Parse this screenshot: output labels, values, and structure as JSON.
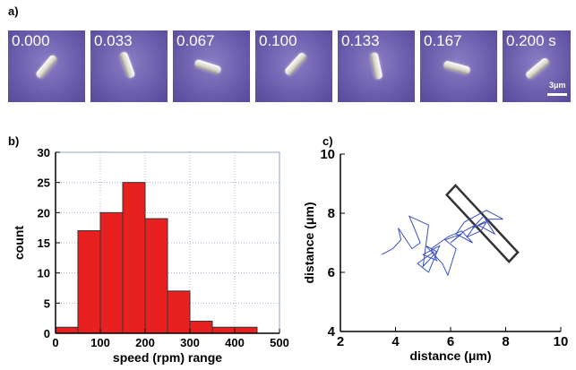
{
  "panels": {
    "a": "a)",
    "b": "b)",
    "c": "c)"
  },
  "frames": {
    "times": [
      "0.000",
      "0.033",
      "0.067",
      "0.100",
      "0.133",
      "0.167",
      "0.200 s"
    ],
    "rod_angles_deg": [
      -50,
      70,
      18,
      -48,
      78,
      15,
      -40
    ],
    "scale_bar_label": "3μm"
  },
  "chart_data": [
    {
      "type": "bar",
      "panel": "b",
      "xlabel": "speed (rpm) range",
      "ylabel": "count",
      "xlim": [
        0,
        500
      ],
      "ylim": [
        0,
        30
      ],
      "xticks": [
        0,
        100,
        200,
        300,
        400,
        500
      ],
      "yticks": [
        0,
        5,
        10,
        15,
        20,
        25,
        30
      ],
      "bins": [
        [
          0,
          50
        ],
        [
          50,
          100
        ],
        [
          100,
          150
        ],
        [
          150,
          200
        ],
        [
          200,
          250
        ],
        [
          250,
          300
        ],
        [
          300,
          350
        ],
        [
          350,
          400
        ],
        [
          400,
          450
        ]
      ],
      "values": [
        1,
        17,
        20,
        25,
        19,
        7,
        2,
        1,
        1
      ],
      "bar_color": "#e82020",
      "grid": true
    },
    {
      "type": "line",
      "panel": "c",
      "xlabel": "distance (μm)",
      "ylabel": "distance (μm)",
      "xlim": [
        2,
        10
      ],
      "ylim": [
        4,
        10
      ],
      "xticks": [
        2,
        4,
        6,
        8,
        10
      ],
      "yticks": [
        4,
        6,
        8,
        10
      ],
      "line_color": "#3a4fc4",
      "rod_outline": {
        "center": [
          7.15,
          7.65
        ],
        "length": 3.2,
        "width": 0.45,
        "angle_deg": -45,
        "color": "#333333"
      },
      "x": [
        3.5,
        3.9,
        4.2,
        4.1,
        4.6,
        4.9,
        4.5,
        5.2,
        5.0,
        5.5,
        5.1,
        5.7,
        5.9,
        6.2,
        5.8,
        6.4,
        6.0,
        6.5,
        6.9,
        6.6,
        7.1,
        7.3,
        6.8,
        7.2,
        7.6,
        7.0,
        7.4,
        7.9,
        7.3,
        6.5,
        6.2,
        6.8,
        6.4,
        5.9,
        5.3,
        5.5,
        5.0,
        5.6,
        5.2,
        4.8,
        5.4
      ],
      "y": [
        6.6,
        6.8,
        7.1,
        7.5,
        6.8,
        7.0,
        7.9,
        7.6,
        6.2,
        6.7,
        6.9,
        6.3,
        5.9,
        6.8,
        7.1,
        7.3,
        7.0,
        7.4,
        7.6,
        7.2,
        7.4,
        7.7,
        7.5,
        7.9,
        7.3,
        7.6,
        7.8,
        7.8,
        8.1,
        7.7,
        7.3,
        7.0,
        7.4,
        7.2,
        6.8,
        6.4,
        6.6,
        6.9,
        6.0,
        6.3,
        6.7
      ]
    }
  ]
}
